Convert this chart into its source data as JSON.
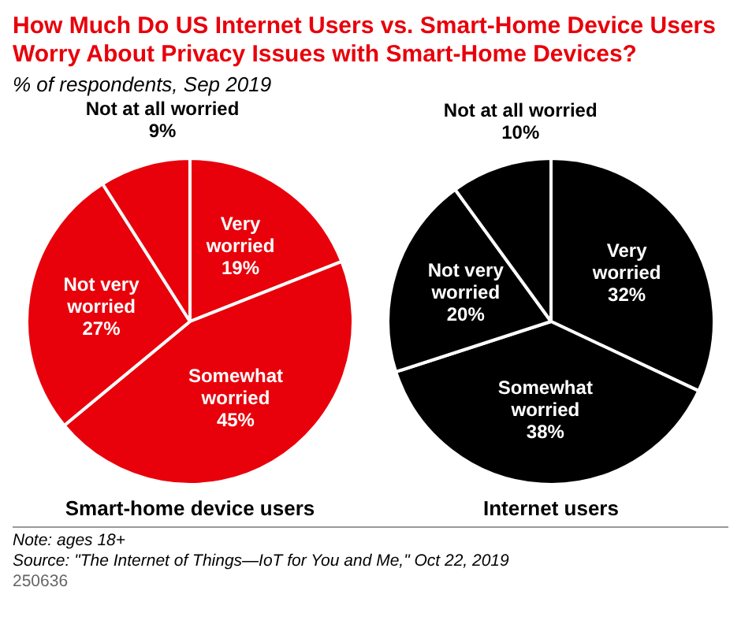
{
  "chart_data": [
    {
      "type": "pie",
      "title": "How Much Do US Internet Users vs. Smart-Home Device Users Worry About Privacy Issues with Smart-Home Devices?",
      "subtitle": "% of respondents, Sep 2019",
      "xlabel": "Smart-home device users",
      "categories": [
        "Very worried",
        "Somewhat worried",
        "Not very worried",
        "Not at all worried"
      ],
      "values": [
        19,
        45,
        27,
        9
      ],
      "value_labels": [
        "19%",
        "45%",
        "27%",
        "9%"
      ],
      "colors": [
        "#e8000b",
        "#e8000b",
        "#e8000b",
        "#e8000b"
      ],
      "annotations": [
        "Note: ages 18+",
        "Source: \"The Internet of Things—IoT for You and Me,\" Oct 22, 2019",
        "250636"
      ]
    },
    {
      "type": "pie",
      "xlabel": "Internet users",
      "categories": [
        "Very worried",
        "Somewhat worried",
        "Not very worried",
        "Not at all worried"
      ],
      "values": [
        32,
        38,
        20,
        10
      ],
      "value_labels": [
        "32%",
        "38%",
        "20%",
        "10%"
      ],
      "colors": [
        "#000000",
        "#000000",
        "#000000",
        "#000000"
      ]
    }
  ]
}
